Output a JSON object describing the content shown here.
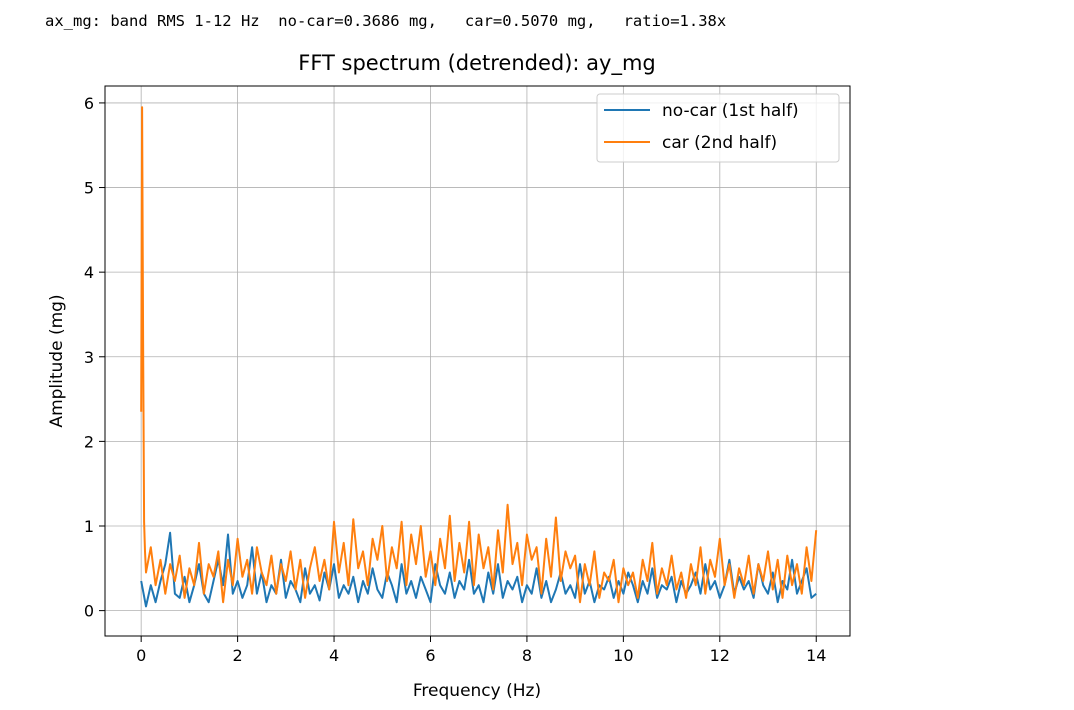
{
  "output": {
    "console_line": "ax_mg: band RMS 1-12 Hz  no-car=0.3686 mg,   car=0.5070 mg,   ratio=1.38x"
  },
  "chart_data": {
    "type": "line",
    "title": "FFT spectrum (detrended): ay_mg",
    "xlabel": "Frequency (Hz)",
    "ylabel": "Amplitude (mg)",
    "xlim": [
      -0.75,
      14.7
    ],
    "ylim": [
      -0.3,
      6.2
    ],
    "xticks": [
      0,
      2,
      4,
      6,
      8,
      10,
      12,
      14
    ],
    "yticks": [
      0,
      1,
      2,
      3,
      4,
      5,
      6
    ],
    "grid": true,
    "legend_position": "top-right",
    "series": [
      {
        "name": "no-car (1st half)",
        "color": "#1f77b4",
        "x": [
          0.0,
          0.1,
          0.2,
          0.3,
          0.4,
          0.5,
          0.6,
          0.7,
          0.8,
          0.9,
          1.0,
          1.1,
          1.2,
          1.3,
          1.4,
          1.5,
          1.6,
          1.7,
          1.8,
          1.9,
          2.0,
          2.1,
          2.2,
          2.3,
          2.4,
          2.5,
          2.6,
          2.7,
          2.8,
          2.9,
          3.0,
          3.1,
          3.2,
          3.3,
          3.4,
          3.5,
          3.6,
          3.7,
          3.8,
          3.9,
          4.0,
          4.1,
          4.2,
          4.3,
          4.4,
          4.5,
          4.6,
          4.7,
          4.8,
          4.9,
          5.0,
          5.1,
          5.2,
          5.3,
          5.4,
          5.5,
          5.6,
          5.7,
          5.8,
          5.9,
          6.0,
          6.1,
          6.2,
          6.3,
          6.4,
          6.5,
          6.6,
          6.7,
          6.8,
          6.9,
          7.0,
          7.1,
          7.2,
          7.3,
          7.4,
          7.5,
          7.6,
          7.7,
          7.8,
          7.9,
          8.0,
          8.1,
          8.2,
          8.3,
          8.4,
          8.5,
          8.6,
          8.7,
          8.8,
          8.9,
          9.0,
          9.1,
          9.2,
          9.3,
          9.4,
          9.5,
          9.6,
          9.7,
          9.8,
          9.9,
          10.0,
          10.1,
          10.2,
          10.3,
          10.4,
          10.5,
          10.6,
          10.7,
          10.8,
          10.9,
          11.0,
          11.1,
          11.2,
          11.3,
          11.4,
          11.5,
          11.6,
          11.7,
          11.8,
          11.9,
          12.0,
          12.1,
          12.2,
          12.3,
          12.4,
          12.5,
          12.6,
          12.7,
          12.8,
          12.9,
          13.0,
          13.1,
          13.2,
          13.3,
          13.4,
          13.5,
          13.6,
          13.7,
          13.8,
          13.9,
          14.0
        ],
        "values": [
          0.35,
          0.05,
          0.3,
          0.1,
          0.35,
          0.55,
          0.92,
          0.2,
          0.15,
          0.4,
          0.1,
          0.3,
          0.55,
          0.2,
          0.1,
          0.35,
          0.6,
          0.3,
          0.9,
          0.2,
          0.35,
          0.15,
          0.3,
          0.75,
          0.2,
          0.45,
          0.1,
          0.3,
          0.2,
          0.6,
          0.15,
          0.35,
          0.25,
          0.1,
          0.5,
          0.2,
          0.3,
          0.12,
          0.45,
          0.25,
          0.55,
          0.15,
          0.3,
          0.2,
          0.4,
          0.1,
          0.35,
          0.2,
          0.5,
          0.25,
          0.15,
          0.45,
          0.3,
          0.1,
          0.55,
          0.2,
          0.35,
          0.15,
          0.4,
          0.25,
          0.1,
          0.55,
          0.3,
          0.2,
          0.45,
          0.15,
          0.35,
          0.25,
          0.6,
          0.2,
          0.3,
          0.1,
          0.45,
          0.2,
          0.55,
          0.15,
          0.35,
          0.25,
          0.4,
          0.1,
          0.3,
          0.2,
          0.5,
          0.15,
          0.35,
          0.1,
          0.25,
          0.45,
          0.2,
          0.3,
          0.15,
          0.55,
          0.2,
          0.35,
          0.1,
          0.3,
          0.25,
          0.4,
          0.15,
          0.35,
          0.2,
          0.45,
          0.3,
          0.1,
          0.35,
          0.2,
          0.5,
          0.15,
          0.3,
          0.25,
          0.4,
          0.1,
          0.35,
          0.2,
          0.3,
          0.45,
          0.2,
          0.55,
          0.25,
          0.35,
          0.15,
          0.3,
          0.6,
          0.2,
          0.4,
          0.25,
          0.35,
          0.15,
          0.55,
          0.3,
          0.2,
          0.45,
          0.1,
          0.35,
          0.25,
          0.6,
          0.2,
          0.35,
          0.5,
          0.15,
          0.2
        ]
      },
      {
        "name": "car (2nd half)",
        "color": "#ff7f0e",
        "x": [
          0.0,
          0.02,
          0.04,
          0.06,
          0.08,
          0.1,
          0.2,
          0.3,
          0.4,
          0.5,
          0.6,
          0.7,
          0.8,
          0.9,
          1.0,
          1.1,
          1.2,
          1.3,
          1.4,
          1.5,
          1.6,
          1.7,
          1.8,
          1.9,
          2.0,
          2.1,
          2.2,
          2.3,
          2.4,
          2.5,
          2.6,
          2.7,
          2.8,
          2.9,
          3.0,
          3.1,
          3.2,
          3.3,
          3.4,
          3.5,
          3.6,
          3.7,
          3.8,
          3.9,
          4.0,
          4.1,
          4.2,
          4.3,
          4.4,
          4.5,
          4.6,
          4.7,
          4.8,
          4.9,
          5.0,
          5.1,
          5.2,
          5.3,
          5.4,
          5.5,
          5.6,
          5.7,
          5.8,
          5.9,
          6.0,
          6.1,
          6.2,
          6.3,
          6.4,
          6.5,
          6.6,
          6.7,
          6.8,
          6.9,
          7.0,
          7.1,
          7.2,
          7.3,
          7.4,
          7.5,
          7.6,
          7.7,
          7.8,
          7.9,
          8.0,
          8.1,
          8.2,
          8.3,
          8.4,
          8.5,
          8.6,
          8.7,
          8.8,
          8.9,
          9.0,
          9.1,
          9.2,
          9.3,
          9.4,
          9.5,
          9.6,
          9.7,
          9.8,
          9.9,
          10.0,
          10.1,
          10.2,
          10.3,
          10.4,
          10.5,
          10.6,
          10.7,
          10.8,
          10.9,
          11.0,
          11.1,
          11.2,
          11.3,
          11.4,
          11.5,
          11.6,
          11.7,
          11.8,
          11.9,
          12.0,
          12.1,
          12.2,
          12.3,
          12.4,
          12.5,
          12.6,
          12.7,
          12.8,
          12.9,
          13.0,
          13.1,
          13.2,
          13.3,
          13.4,
          13.5,
          13.6,
          13.7,
          13.8,
          13.9,
          14.0
        ],
        "values": [
          2.35,
          5.95,
          3.2,
          1.05,
          0.7,
          0.45,
          0.75,
          0.3,
          0.6,
          0.2,
          0.55,
          0.35,
          0.65,
          0.15,
          0.5,
          0.3,
          0.8,
          0.2,
          0.55,
          0.4,
          0.7,
          0.1,
          0.6,
          0.3,
          0.85,
          0.4,
          0.6,
          0.2,
          0.75,
          0.45,
          0.3,
          0.65,
          0.2,
          0.55,
          0.35,
          0.7,
          0.25,
          0.6,
          0.15,
          0.5,
          0.75,
          0.35,
          0.6,
          0.25,
          1.05,
          0.45,
          0.8,
          0.3,
          1.08,
          0.5,
          0.7,
          0.3,
          0.85,
          0.6,
          1.0,
          0.35,
          0.75,
          0.5,
          1.05,
          0.3,
          0.9,
          0.55,
          1.0,
          0.4,
          0.7,
          0.3,
          0.85,
          0.5,
          1.12,
          0.35,
          0.8,
          0.45,
          1.05,
          0.3,
          0.9,
          0.5,
          0.75,
          0.25,
          0.95,
          0.45,
          1.25,
          0.55,
          0.8,
          0.3,
          0.9,
          0.6,
          0.75,
          0.2,
          0.85,
          0.4,
          1.1,
          0.35,
          0.7,
          0.5,
          0.65,
          0.1,
          0.55,
          0.3,
          0.7,
          0.15,
          0.45,
          0.35,
          0.6,
          0.1,
          0.5,
          0.3,
          0.45,
          0.15,
          0.6,
          0.35,
          0.8,
          0.2,
          0.5,
          0.3,
          0.65,
          0.25,
          0.45,
          0.15,
          0.55,
          0.3,
          0.75,
          0.2,
          0.6,
          0.4,
          0.85,
          0.3,
          0.55,
          0.15,
          0.5,
          0.3,
          0.65,
          0.2,
          0.55,
          0.35,
          0.7,
          0.25,
          0.6,
          0.15,
          0.65,
          0.3,
          0.55,
          0.2,
          0.75,
          0.35,
          0.95
        ]
      }
    ]
  }
}
